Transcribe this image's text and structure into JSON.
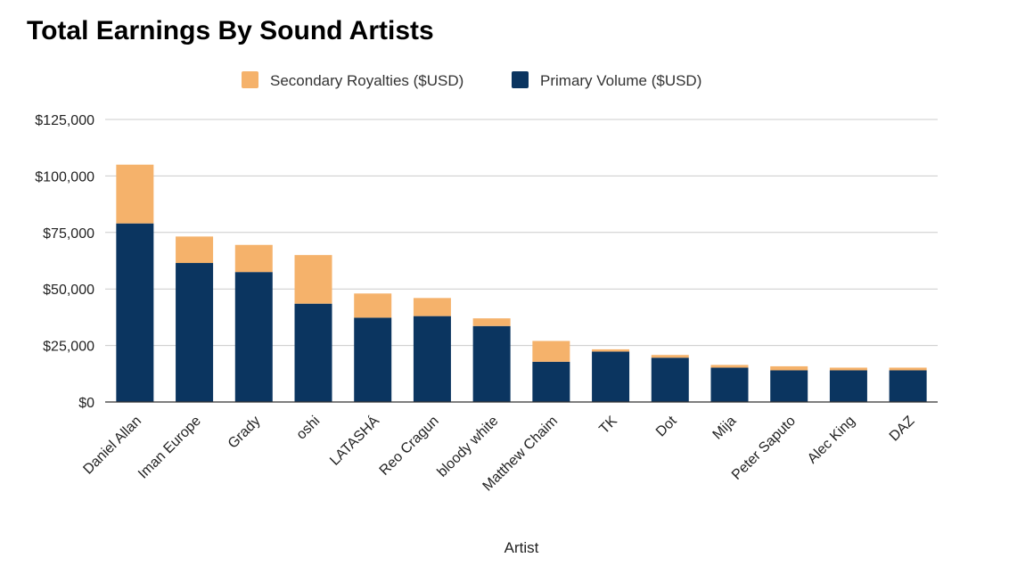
{
  "chart_data": {
    "type": "bar",
    "stacked": true,
    "title": "Total Earnings By Sound Artists",
    "xlabel": "Artist",
    "ylabel": "",
    "ylim": [
      0,
      125000
    ],
    "yticks": [
      0,
      25000,
      50000,
      75000,
      100000,
      125000
    ],
    "ytick_labels": [
      "$0",
      "$25,000",
      "$50,000",
      "$75,000",
      "$100,000",
      "$125,000"
    ],
    "grid": true,
    "legend_position": "top-center",
    "categories": [
      "Daniel Allan",
      "Iman Europe",
      "Grady",
      "oshi",
      "LATASHÁ",
      "Reo Cragun",
      "bloody white",
      "Matthew Chaim",
      "TK",
      "Dot",
      "Mija",
      "Peter Saputo",
      "Alec King",
      "DAZ"
    ],
    "series": [
      {
        "name": "Primary Volume ($USD)",
        "color": "#0b3560",
        "values": [
          79000,
          61500,
          57500,
          43500,
          37300,
          38000,
          33600,
          17800,
          22300,
          19600,
          15200,
          14000,
          14000,
          14000
        ]
      },
      {
        "name": "Secondary Royalties ($USD)",
        "color": "#f5b26b",
        "values": [
          26000,
          11700,
          12000,
          21500,
          10700,
          8000,
          3400,
          9200,
          1000,
          1200,
          1200,
          1800,
          1200,
          1200
        ]
      }
    ],
    "legend_order": [
      "Secondary Royalties ($USD)",
      "Primary Volume ($USD)"
    ]
  }
}
